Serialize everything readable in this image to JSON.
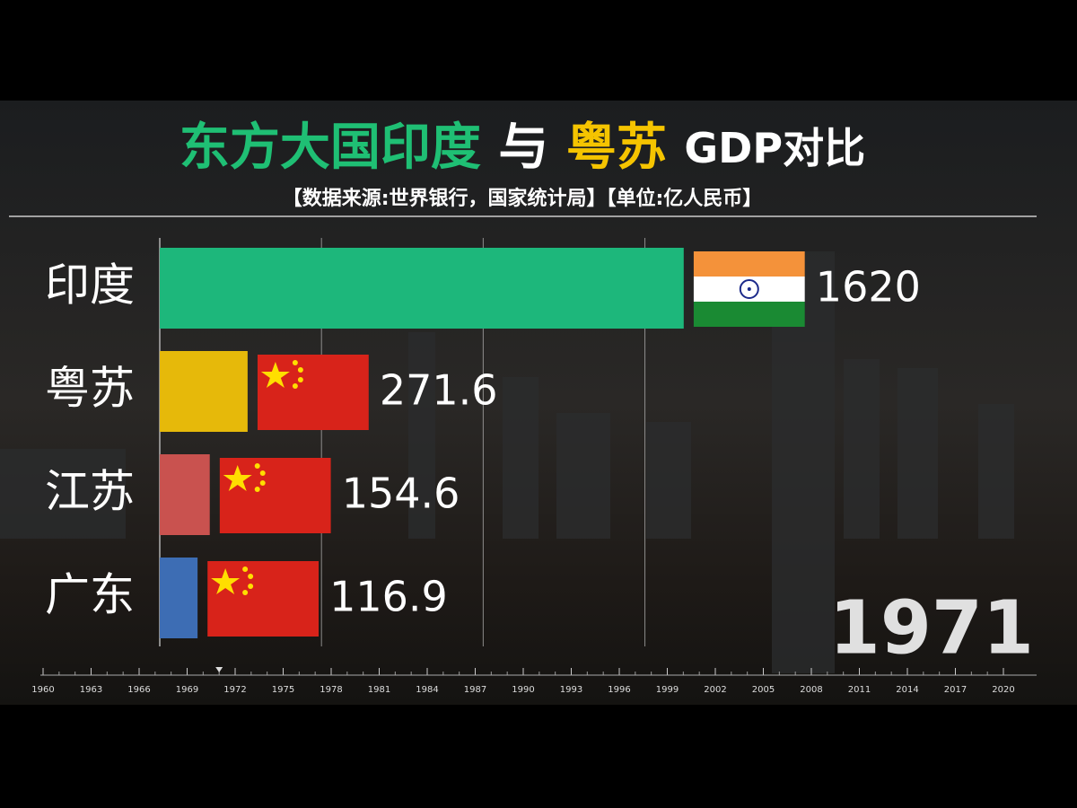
{
  "chart_data": {
    "type": "bar",
    "title": [
      "东方大国印度",
      "与",
      "粤苏",
      "GDP对比"
    ],
    "subtitle": "【数据来源:世界银行，国家统计局】【单位:亿人民币】",
    "categories": [
      "印度",
      "粤苏",
      "江苏",
      "广东"
    ],
    "values": [
      1620,
      271.6,
      154.6,
      116.9
    ],
    "colors": [
      "#1db77b",
      "#e6b90a",
      "#c9524f",
      "#3d6db4"
    ],
    "xlim": [
      0,
      2700
    ],
    "grid_values": [
      0,
      500,
      1000,
      1500
    ],
    "current_year": 1971,
    "timeline_lim": [
      1960,
      2020
    ],
    "timeline_ticks": [
      1960,
      1963,
      1966,
      1969,
      1972,
      1975,
      1978,
      1981,
      1984,
      1987,
      1990,
      1993,
      1996,
      1999,
      2002,
      2005,
      2008,
      2011,
      2014,
      2017,
      2020
    ]
  }
}
